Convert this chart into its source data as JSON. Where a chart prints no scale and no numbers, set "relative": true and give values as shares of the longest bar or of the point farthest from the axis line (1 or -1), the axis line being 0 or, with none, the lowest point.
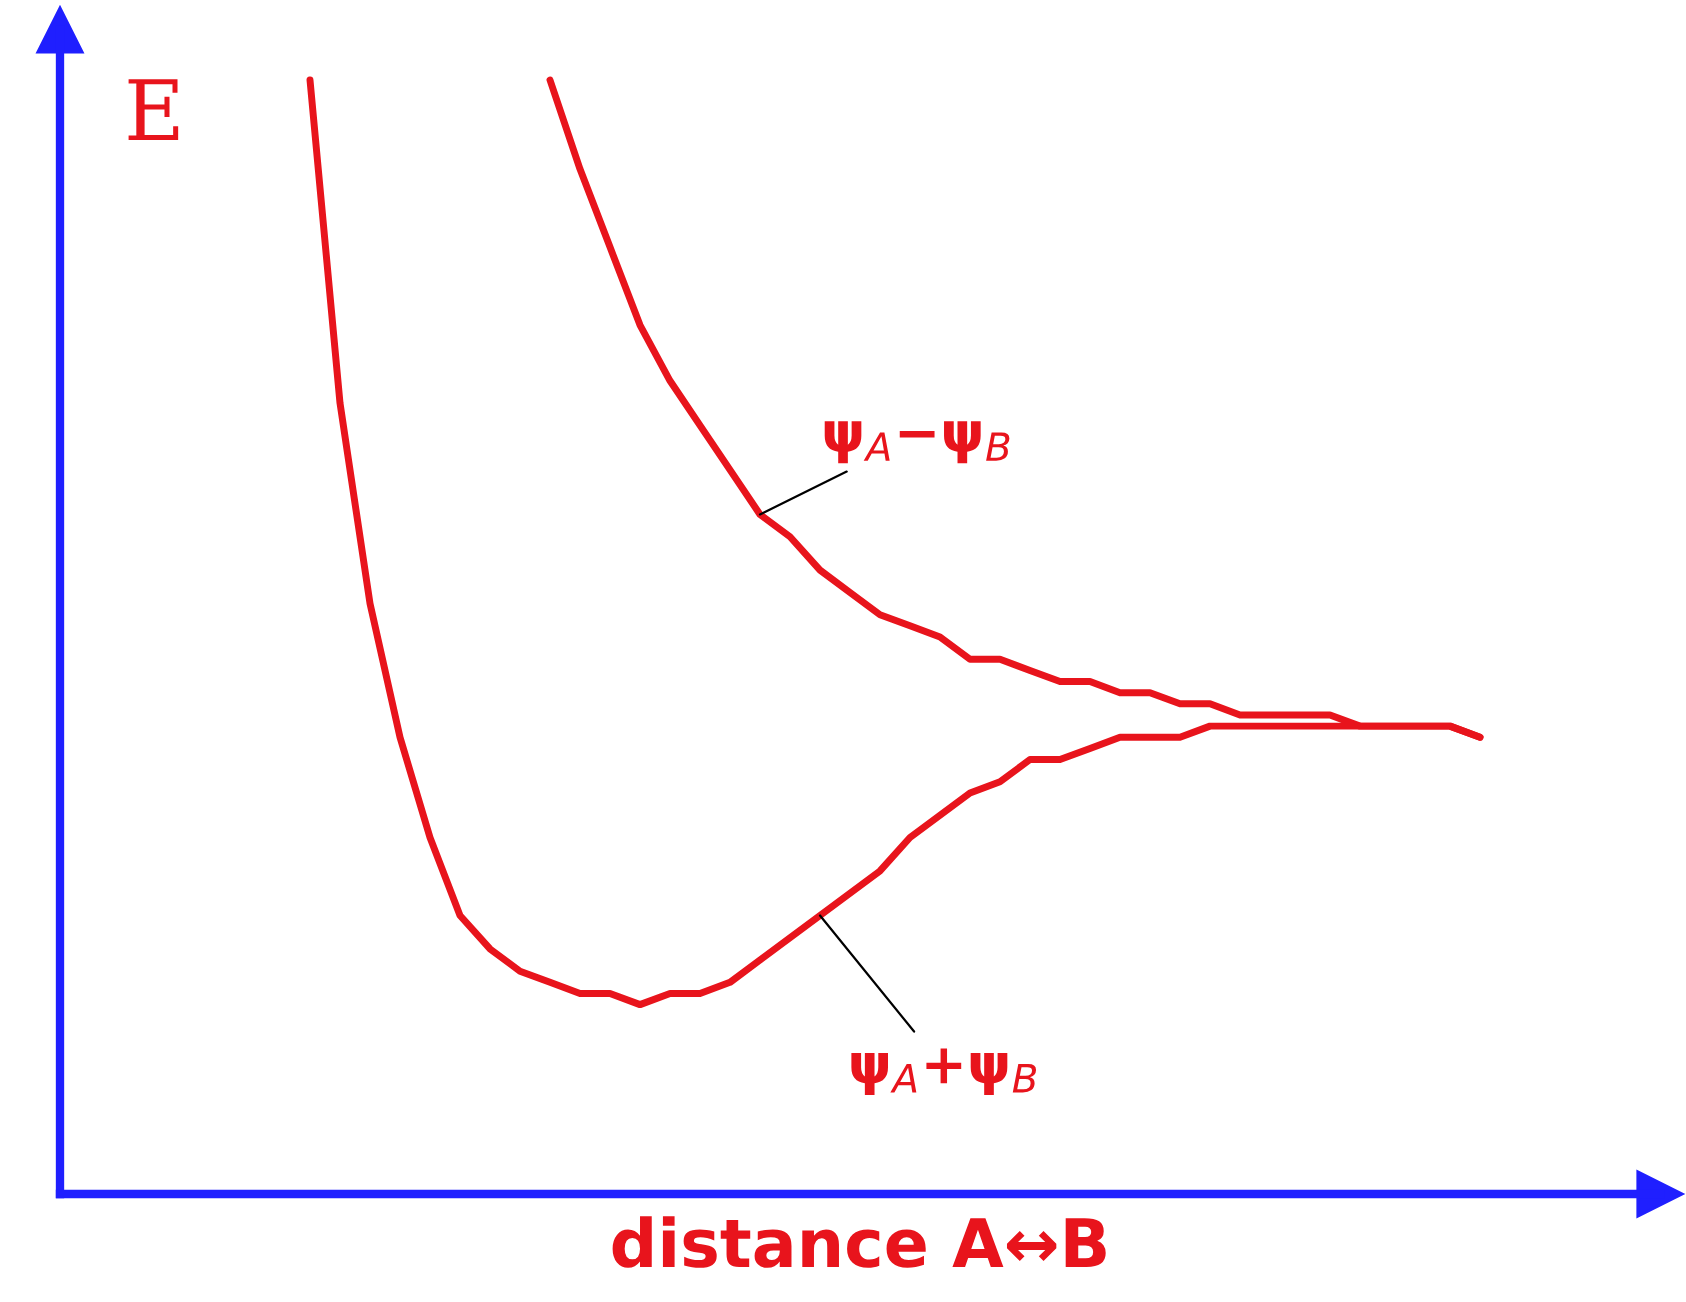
{
  "chart_data": {
    "type": "line",
    "relative": true,
    "xlabel": "distance A↔B",
    "ylabel": "E",
    "legend": false,
    "marker": "none",
    "line_style": "solid",
    "categories": [
      null,
      null,
      null,
      null,
      null,
      null,
      null,
      null,
      null,
      null,
      null,
      null,
      null,
      null,
      null,
      null,
      null,
      null,
      null,
      null,
      null,
      null,
      null,
      null,
      null,
      null,
      null,
      null,
      null,
      null,
      null,
      null,
      null,
      null,
      null,
      null,
      null,
      null,
      null,
      null
    ],
    "series": [
      {
        "name": "ψ$_{A}$−ψ$_{B}$",
        "color": "#e8141c",
        "values": [
          null,
          null,
          null,
          null,
          null,
          null,
          null,
          null,
          1.0,
          0.92,
          0.85,
          0.78,
          0.73,
          0.69,
          0.65,
          0.61,
          0.59,
          0.56,
          0.54,
          0.52,
          0.51,
          0.5,
          0.48,
          0.48,
          0.47,
          0.46,
          0.46,
          0.45,
          0.45,
          0.44,
          0.44,
          0.43,
          0.43,
          0.43,
          0.43,
          0.42,
          0.42,
          0.42,
          0.42,
          0.41
        ]
      },
      {
        "name": "ψ$_{A}$+ψ$_{B}$",
        "color": "#e8141c",
        "values": [
          1.0,
          0.71,
          0.53,
          0.41,
          0.32,
          0.25,
          0.22,
          0.2,
          0.19,
          0.18,
          0.18,
          0.17,
          0.18,
          0.18,
          0.19,
          0.21,
          0.23,
          0.25,
          0.27,
          0.29,
          0.32,
          0.34,
          0.36,
          0.37,
          0.39,
          0.39,
          0.4,
          0.41,
          0.41,
          0.41,
          0.42,
          0.42,
          0.42,
          0.42,
          0.42,
          0.42,
          0.42,
          0.42,
          0.42,
          0.41
        ]
      }
    ]
  }
}
